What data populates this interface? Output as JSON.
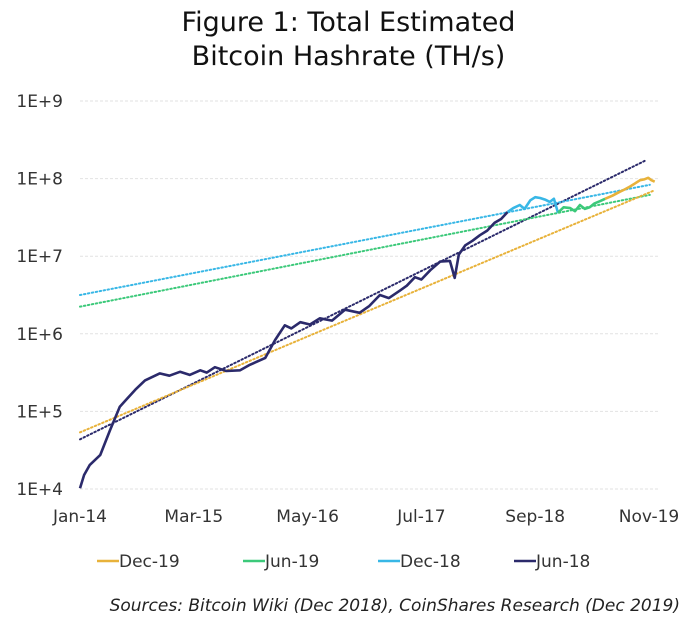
{
  "chart_data": {
    "type": "line",
    "title": [
      "Figure 1: Total Estimated",
      "Bitcoin Hashrate (TH/s)"
    ],
    "xlabel": "",
    "ylabel": "",
    "yscale": "log",
    "ylim_log10": [
      4,
      9
    ],
    "y_ticks": [
      "1E+4",
      "1E+5",
      "1E+6",
      "1E+7",
      "1E+8",
      "1E+9"
    ],
    "x_unit": "months since Jan-14",
    "xlim": [
      0,
      70
    ],
    "x_ticks": [
      {
        "label": "Jan-14",
        "month": 0
      },
      {
        "label": "Mar-15",
        "month": 14
      },
      {
        "label": "May-16",
        "month": 28
      },
      {
        "label": "Jul-17",
        "month": 42
      },
      {
        "label": "Sep-18",
        "month": 56
      },
      {
        "label": "Nov-19",
        "month": 70
      }
    ],
    "grid": "horizontal dotted",
    "legend_position": "bottom",
    "series": [
      {
        "name": "Jun-18",
        "color": "#2b2a6b",
        "points": [
          [
            0,
            4.01
          ],
          [
            0.5,
            4.18
          ],
          [
            1.2,
            4.31
          ],
          [
            2.5,
            4.44
          ],
          [
            3.7,
            4.76
          ],
          [
            4.9,
            5.06
          ],
          [
            6.8,
            5.28
          ],
          [
            8.0,
            5.4
          ],
          [
            9.8,
            5.49
          ],
          [
            11.0,
            5.46
          ],
          [
            12.3,
            5.51
          ],
          [
            13.5,
            5.47
          ],
          [
            14.8,
            5.53
          ],
          [
            15.6,
            5.5
          ],
          [
            16.6,
            5.57
          ],
          [
            18.0,
            5.52
          ],
          [
            19.7,
            5.53
          ],
          [
            20.9,
            5.6
          ],
          [
            22.8,
            5.69
          ],
          [
            24.0,
            5.92
          ],
          [
            25.2,
            6.11
          ],
          [
            26.0,
            6.07
          ],
          [
            27.1,
            6.15
          ],
          [
            28.3,
            6.12
          ],
          [
            29.5,
            6.2
          ],
          [
            31.0,
            6.17
          ],
          [
            32.6,
            6.31
          ],
          [
            34.4,
            6.27
          ],
          [
            35.6,
            6.36
          ],
          [
            36.9,
            6.5
          ],
          [
            38.0,
            6.46
          ],
          [
            39.4,
            6.56
          ],
          [
            40.2,
            6.62
          ],
          [
            41.2,
            6.73
          ],
          [
            42.0,
            6.7
          ],
          [
            43.1,
            6.82
          ],
          [
            44.3,
            6.93
          ],
          [
            45.5,
            6.94
          ],
          [
            46.1,
            6.72
          ],
          [
            46.6,
            7.02
          ],
          [
            47.4,
            7.14
          ],
          [
            48.3,
            7.2
          ],
          [
            49.2,
            7.27
          ],
          [
            50.1,
            7.33
          ],
          [
            51.0,
            7.43
          ],
          [
            51.8,
            7.48
          ],
          [
            52.6,
            7.57
          ]
        ],
        "trend": [
          [
            0,
            4.64
          ],
          [
            69.7,
            8.24
          ]
        ]
      },
      {
        "name": "Dec-18",
        "color": "#38b7e6",
        "points": [
          [
            52.6,
            7.57
          ],
          [
            53.3,
            7.62
          ],
          [
            54.1,
            7.66
          ],
          [
            54.7,
            7.61
          ],
          [
            55.4,
            7.72
          ],
          [
            56.0,
            7.76
          ],
          [
            56.6,
            7.75
          ],
          [
            57.2,
            7.73
          ],
          [
            57.8,
            7.7
          ],
          [
            58.3,
            7.74
          ],
          [
            58.8,
            7.56
          ]
        ],
        "trend": [
          [
            0,
            6.5
          ],
          [
            70.1,
            7.92
          ]
        ]
      },
      {
        "name": "Jun-19",
        "color": "#3cc97a",
        "points": [
          [
            58.8,
            7.56
          ],
          [
            59.5,
            7.63
          ],
          [
            60.3,
            7.62
          ],
          [
            60.9,
            7.58
          ],
          [
            61.5,
            7.66
          ],
          [
            62.1,
            7.61
          ],
          [
            62.7,
            7.63
          ],
          [
            63.3,
            7.68
          ],
          [
            64.0,
            7.71
          ],
          [
            64.6,
            7.74
          ]
        ],
        "trend": [
          [
            0,
            6.35
          ],
          [
            70.1,
            7.79
          ]
        ]
      },
      {
        "name": "Dec-19",
        "color": "#e8b23a",
        "points": [
          [
            64.6,
            7.74
          ],
          [
            65.5,
            7.78
          ],
          [
            66.4,
            7.83
          ],
          [
            67.0,
            7.86
          ],
          [
            67.7,
            7.9
          ],
          [
            68.3,
            7.94
          ],
          [
            68.9,
            7.98
          ],
          [
            69.4,
            7.99
          ],
          [
            69.9,
            8.01
          ],
          [
            70.3,
            7.98
          ],
          [
            70.7,
            7.96
          ]
        ],
        "trend": [
          [
            0,
            4.73
          ],
          [
            70.7,
            7.85
          ]
        ]
      }
    ],
    "legend": [
      {
        "label": "Dec-19",
        "color": "#e8b23a"
      },
      {
        "label": "Jun-19",
        "color": "#3cc97a"
      },
      {
        "label": "Dec-18",
        "color": "#38b7e6"
      },
      {
        "label": "Jun-18",
        "color": "#2b2a6b"
      }
    ],
    "source": "Sources: Bitcoin Wiki (Dec 2018), CoinShares Research (Dec 2019)"
  }
}
